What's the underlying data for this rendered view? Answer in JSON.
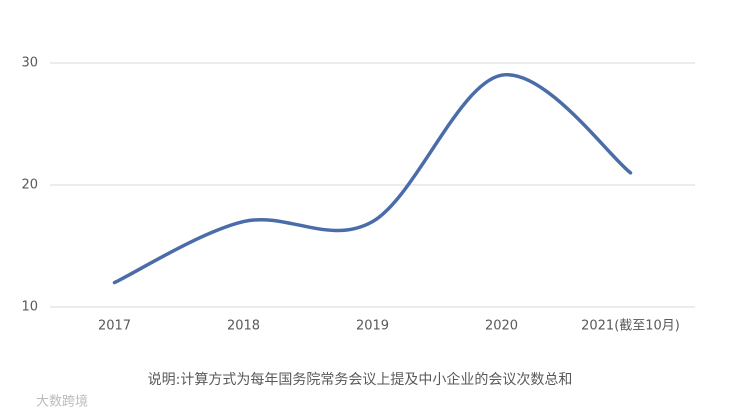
{
  "chart_data": {
    "type": "line",
    "categories": [
      "2017",
      "2018",
      "2019",
      "2020",
      "2021(截至10月)"
    ],
    "values": [
      12,
      17,
      17,
      29,
      21
    ],
    "color": "#4a6ca8",
    "ylim": [
      10,
      30
    ],
    "yticks": [
      10,
      20,
      30
    ],
    "grid": true,
    "note": "说明:计算方式为每年国务院常务会议上提及中小企业的会议次数总和",
    "watermark": "大数跨境"
  }
}
